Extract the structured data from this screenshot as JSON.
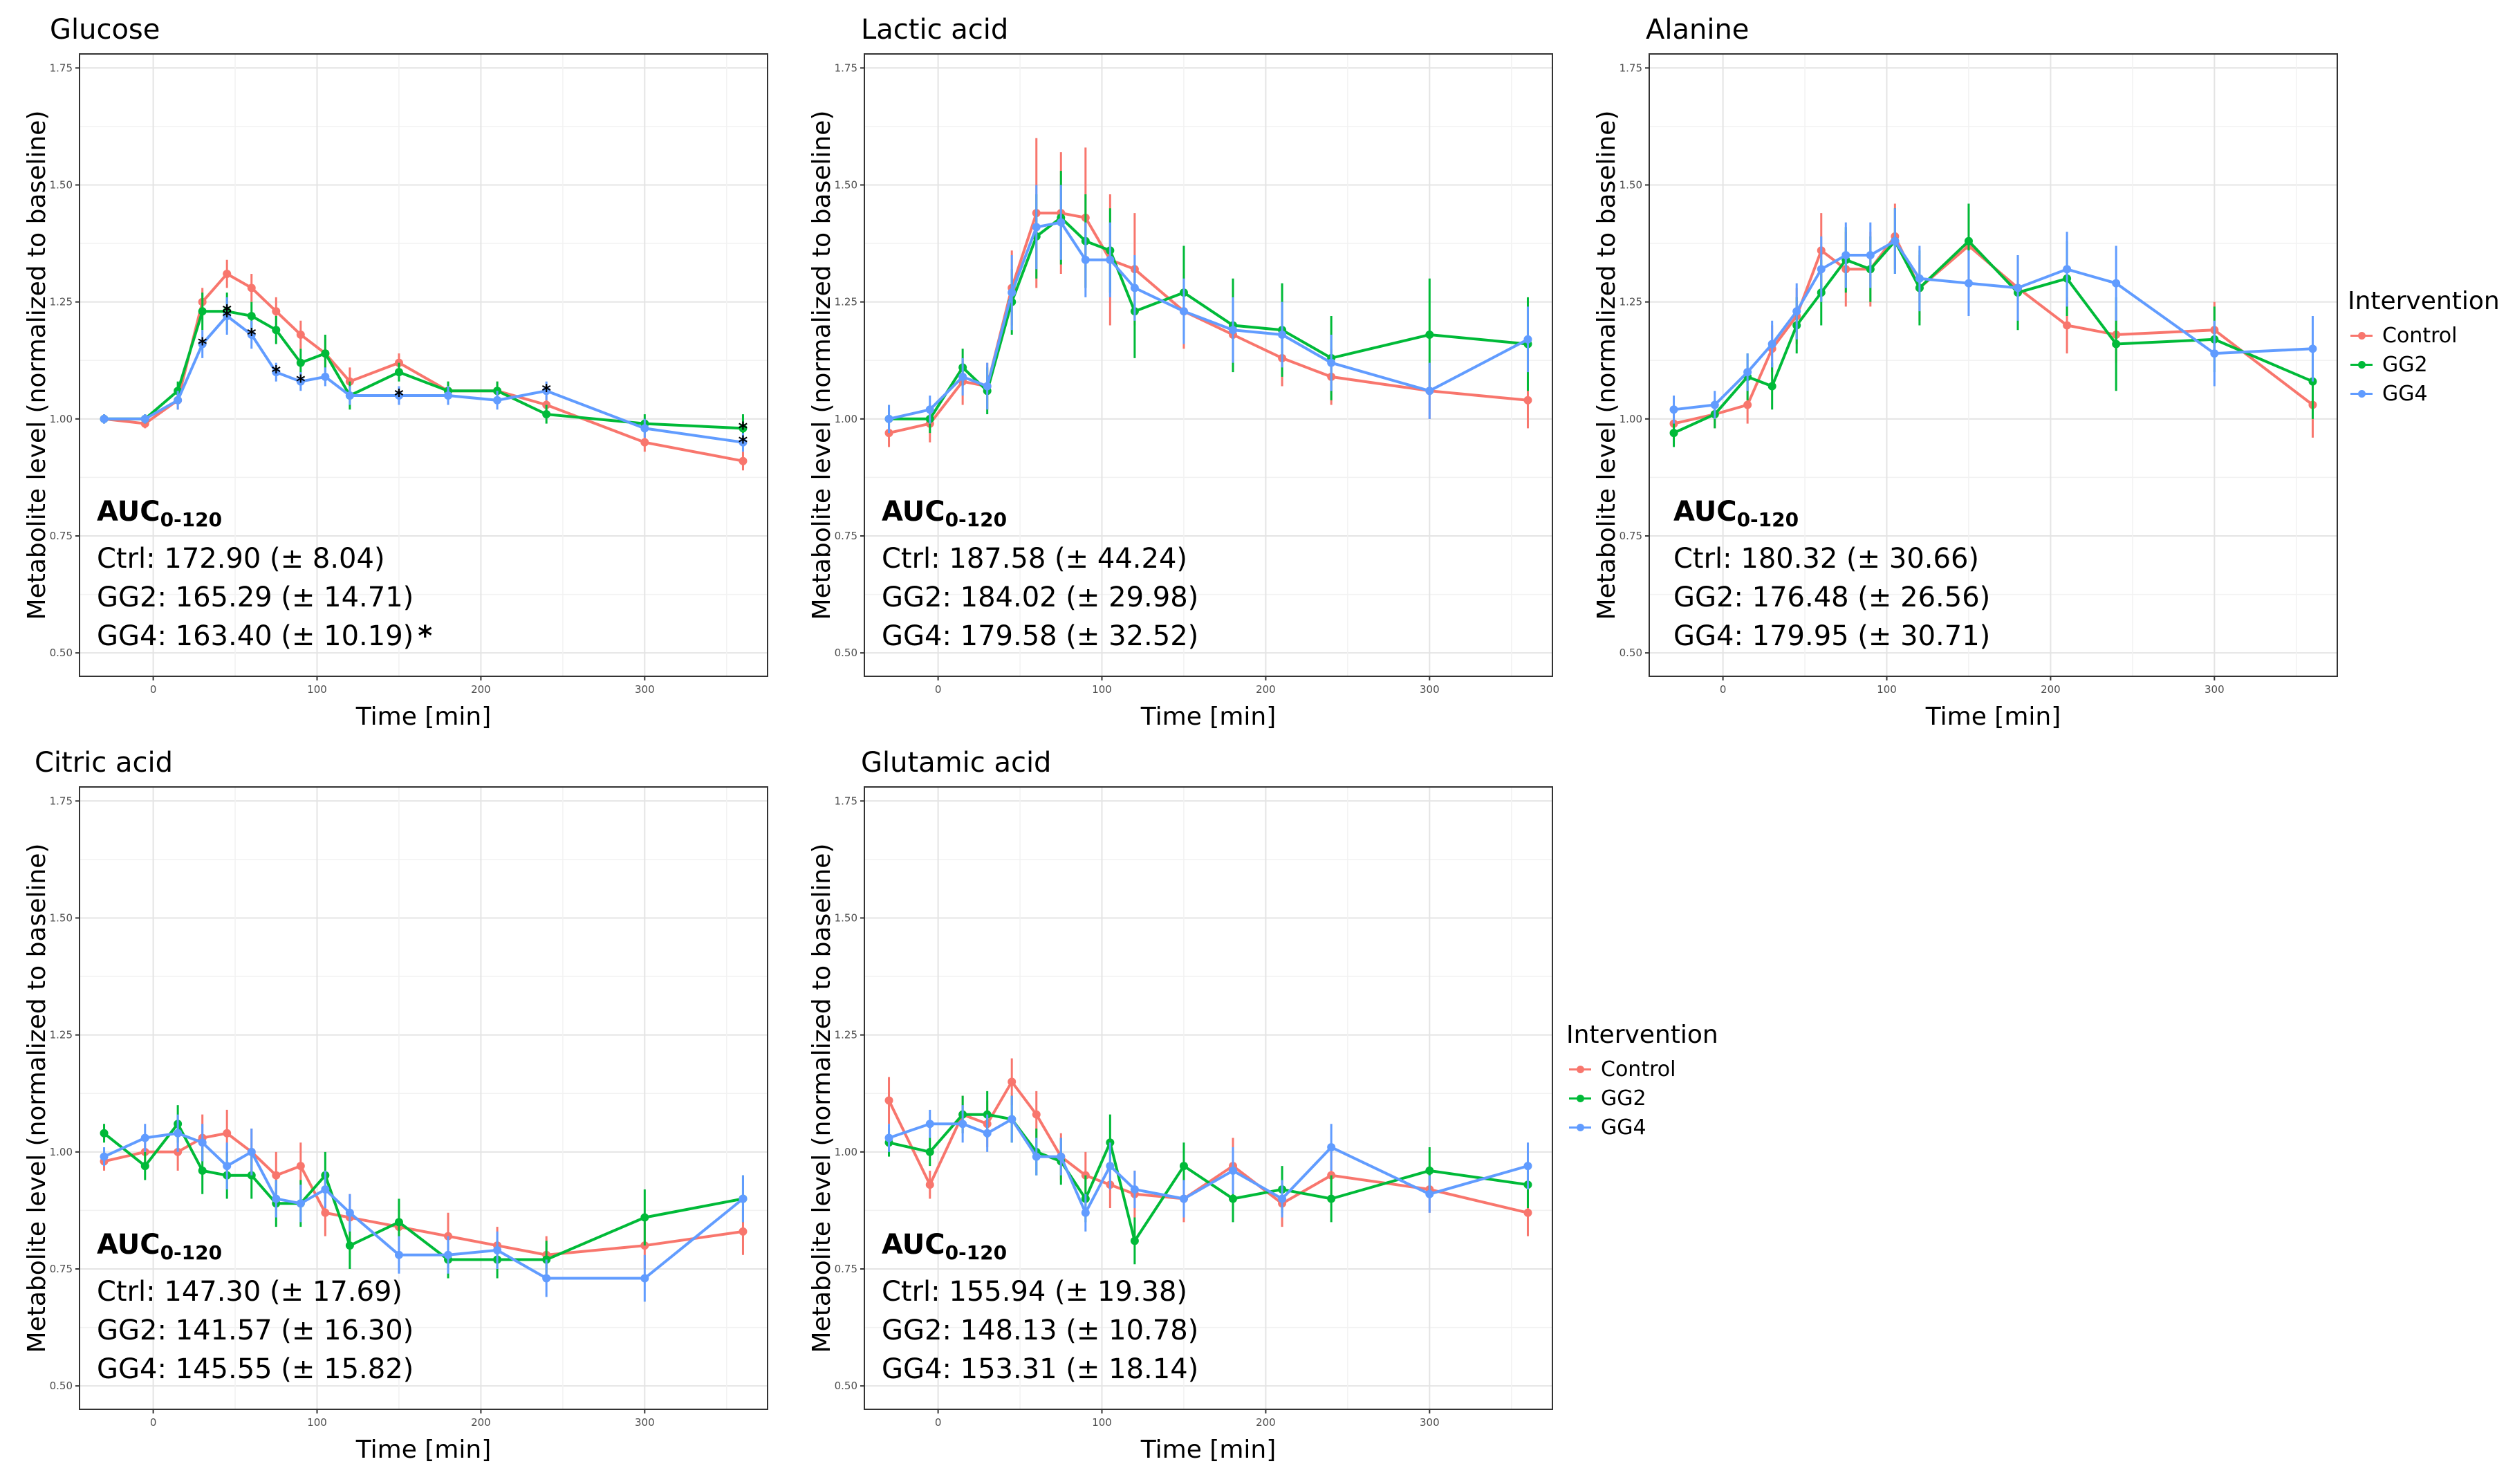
{
  "common": {
    "xlabel": "Time [min]",
    "ylabel": "Metabolite level (normalized to baseline)",
    "auc_header_base": "AUC",
    "auc_header_sub": "0-120",
    "x_ticks": [
      "0",
      "100",
      "200",
      "300"
    ],
    "y_ticks": [
      "0.50",
      "0.75",
      "1.00",
      "1.25",
      "1.50",
      "1.75"
    ],
    "xlim": [
      -45,
      375
    ],
    "ylim": [
      0.45,
      1.78
    ]
  },
  "legend": {
    "title": "Intervention",
    "items": [
      {
        "label": "Control",
        "color": "#F8766D"
      },
      {
        "label": "GG2",
        "color": "#00BA38"
      },
      {
        "label": "GG4",
        "color": "#619CFF"
      }
    ]
  },
  "panels": [
    {
      "title": "Glucose",
      "auc_lines": [
        "Ctrl: 172.90 (± 8.04)",
        "GG2: 165.29 (± 14.71)",
        "GG4: 163.40 (± 10.19)"
      ],
      "auc_star": "*"
    },
    {
      "title": "Lactic acid",
      "auc_lines": [
        "Ctrl: 187.58 (± 44.24)",
        "GG2: 184.02 (± 29.98)",
        "GG4: 179.58 (± 32.52)"
      ]
    },
    {
      "title": "Alanine",
      "auc_lines": [
        "Ctrl: 180.32 (± 30.66)",
        "GG2: 176.48 (± 26.56)",
        "GG4: 179.95 (± 30.71)"
      ]
    },
    {
      "title": "Citric acid",
      "auc_lines": [
        "Ctrl: 147.30 (± 17.69)",
        "GG2: 141.57 (± 16.30)",
        "GG4: 145.55 (± 15.82)"
      ]
    },
    {
      "title": "Glutamic acid",
      "auc_lines": [
        "Ctrl: 155.94 (± 19.38)",
        "GG2: 148.13 (± 10.78)",
        "GG4: 153.31 (± 18.14)"
      ]
    }
  ],
  "chart_data": [
    {
      "type": "line",
      "title": "Glucose",
      "xlabel": "Time [min]",
      "ylabel": "Metabolite level (normalized to baseline)",
      "xlim": [
        -45,
        375
      ],
      "ylim": [
        0.45,
        1.78
      ],
      "x": [
        -30,
        -5,
        15,
        30,
        45,
        60,
        75,
        90,
        105,
        120,
        150,
        180,
        210,
        240,
        300,
        360
      ],
      "series": [
        {
          "name": "Control",
          "color": "#F8766D",
          "values": [
            1.0,
            0.99,
            1.04,
            1.25,
            1.31,
            1.28,
            1.23,
            1.18,
            1.14,
            1.08,
            1.12,
            1.06,
            1.06,
            1.03,
            0.95,
            0.91
          ],
          "errors": [
            0.01,
            0.01,
            0.02,
            0.03,
            0.03,
            0.03,
            0.03,
            0.03,
            0.03,
            0.03,
            0.02,
            0.02,
            0.02,
            0.02,
            0.02,
            0.02
          ]
        },
        {
          "name": "GG2",
          "color": "#00BA38",
          "values": [
            1.0,
            1.0,
            1.06,
            1.23,
            1.23,
            1.22,
            1.19,
            1.12,
            1.14,
            1.05,
            1.1,
            1.06,
            1.06,
            1.01,
            0.99,
            0.98
          ],
          "errors": [
            0.01,
            0.01,
            0.02,
            0.04,
            0.04,
            0.03,
            0.03,
            0.03,
            0.04,
            0.03,
            0.02,
            0.02,
            0.02,
            0.02,
            0.02,
            0.03
          ]
        },
        {
          "name": "GG4",
          "color": "#619CFF",
          "values": [
            1.0,
            1.0,
            1.04,
            1.16,
            1.22,
            1.18,
            1.1,
            1.08,
            1.09,
            1.05,
            1.05,
            1.05,
            1.04,
            1.06,
            0.98,
            0.95
          ],
          "errors": [
            0.01,
            0.01,
            0.02,
            0.03,
            0.04,
            0.03,
            0.02,
            0.02,
            0.02,
            0.02,
            0.02,
            0.02,
            0.02,
            0.02,
            0.02,
            0.02
          ]
        }
      ],
      "significance_markers": [
        {
          "series": "GG4",
          "x": [
            30,
            45,
            60,
            75,
            90,
            150,
            240,
            360
          ],
          "symbol": "*"
        },
        {
          "series": "GG2",
          "x": [
            45,
            360
          ],
          "symbol": "*"
        }
      ]
    },
    {
      "type": "line",
      "title": "Lactic acid",
      "xlabel": "Time [min]",
      "ylabel": "Metabolite level (normalized to baseline)",
      "xlim": [
        -45,
        375
      ],
      "ylim": [
        0.45,
        1.78
      ],
      "x": [
        -30,
        -5,
        15,
        30,
        45,
        60,
        75,
        90,
        105,
        120,
        150,
        180,
        210,
        240,
        300,
        360
      ],
      "series": [
        {
          "name": "Control",
          "color": "#F8766D",
          "values": [
            0.97,
            0.99,
            1.08,
            1.07,
            1.28,
            1.44,
            1.44,
            1.43,
            1.34,
            1.32,
            1.23,
            1.18,
            1.13,
            1.09,
            1.06,
            1.04
          ],
          "errors": [
            0.03,
            0.04,
            0.05,
            0.05,
            0.08,
            0.16,
            0.13,
            0.15,
            0.14,
            0.12,
            0.08,
            0.07,
            0.06,
            0.06,
            0.06,
            0.06
          ]
        },
        {
          "name": "GG2",
          "color": "#00BA38",
          "values": [
            1.0,
            1.0,
            1.11,
            1.06,
            1.25,
            1.39,
            1.43,
            1.38,
            1.36,
            1.23,
            1.27,
            1.2,
            1.19,
            1.13,
            1.18,
            1.16
          ],
          "errors": [
            0.03,
            0.03,
            0.04,
            0.05,
            0.07,
            0.09,
            0.1,
            0.1,
            0.09,
            0.1,
            0.1,
            0.1,
            0.1,
            0.09,
            0.12,
            0.1
          ]
        },
        {
          "name": "GG4",
          "color": "#619CFF",
          "values": [
            1.0,
            1.02,
            1.09,
            1.07,
            1.27,
            1.41,
            1.42,
            1.34,
            1.34,
            1.28,
            1.23,
            1.19,
            1.18,
            1.12,
            1.06,
            1.17
          ],
          "errors": [
            0.03,
            0.03,
            0.04,
            0.05,
            0.08,
            0.09,
            0.08,
            0.08,
            0.08,
            0.07,
            0.07,
            0.07,
            0.07,
            0.06,
            0.06,
            0.07
          ]
        }
      ]
    },
    {
      "type": "line",
      "title": "Alanine",
      "xlabel": "Time [min]",
      "ylabel": "Metabolite level (normalized to baseline)",
      "xlim": [
        -45,
        375
      ],
      "ylim": [
        0.45,
        1.78
      ],
      "x": [
        -30,
        -5,
        15,
        30,
        45,
        60,
        75,
        90,
        105,
        120,
        150,
        180,
        210,
        240,
        300,
        360
      ],
      "series": [
        {
          "name": "Control",
          "color": "#F8766D",
          "values": [
            0.99,
            1.01,
            1.03,
            1.15,
            1.22,
            1.36,
            1.32,
            1.32,
            1.39,
            1.28,
            1.37,
            1.28,
            1.2,
            1.18,
            1.19,
            1.03
          ],
          "errors": [
            0.03,
            0.03,
            0.04,
            0.05,
            0.06,
            0.08,
            0.08,
            0.08,
            0.07,
            0.07,
            0.08,
            0.07,
            0.06,
            0.06,
            0.06,
            0.07
          ]
        },
        {
          "name": "GG2",
          "color": "#00BA38",
          "values": [
            0.97,
            1.01,
            1.09,
            1.07,
            1.2,
            1.27,
            1.34,
            1.32,
            1.38,
            1.28,
            1.38,
            1.27,
            1.3,
            1.16,
            1.17,
            1.08
          ],
          "errors": [
            0.03,
            0.03,
            0.05,
            0.05,
            0.06,
            0.07,
            0.07,
            0.07,
            0.07,
            0.08,
            0.08,
            0.08,
            0.08,
            0.1,
            0.07,
            0.08
          ]
        },
        {
          "name": "GG4",
          "color": "#619CFF",
          "values": [
            1.02,
            1.03,
            1.1,
            1.16,
            1.23,
            1.32,
            1.35,
            1.35,
            1.38,
            1.3,
            1.29,
            1.28,
            1.32,
            1.29,
            1.14,
            1.15
          ],
          "errors": [
            0.03,
            0.03,
            0.04,
            0.05,
            0.06,
            0.07,
            0.07,
            0.07,
            0.07,
            0.07,
            0.07,
            0.07,
            0.08,
            0.08,
            0.07,
            0.07
          ]
        }
      ]
    },
    {
      "type": "line",
      "title": "Citric acid",
      "xlabel": "Time [min]",
      "ylabel": "Metabolite level (normalized to baseline)",
      "xlim": [
        -45,
        375
      ],
      "ylim": [
        0.45,
        1.78
      ],
      "x": [
        -30,
        -5,
        15,
        30,
        45,
        60,
        75,
        90,
        105,
        120,
        150,
        180,
        210,
        240,
        300,
        360
      ],
      "series": [
        {
          "name": "Control",
          "color": "#F8766D",
          "values": [
            0.98,
            1.0,
            1.0,
            1.03,
            1.04,
            1.0,
            0.95,
            0.97,
            0.87,
            0.86,
            0.84,
            0.82,
            0.8,
            0.78,
            0.8,
            0.83
          ],
          "errors": [
            0.02,
            0.03,
            0.04,
            0.05,
            0.05,
            0.05,
            0.05,
            0.05,
            0.05,
            0.05,
            0.05,
            0.05,
            0.04,
            0.04,
            0.05,
            0.05
          ]
        },
        {
          "name": "GG2",
          "color": "#00BA38",
          "values": [
            1.04,
            0.97,
            1.06,
            0.96,
            0.95,
            0.95,
            0.89,
            0.89,
            0.95,
            0.8,
            0.85,
            0.77,
            0.77,
            0.77,
            0.86,
            0.9
          ],
          "errors": [
            0.02,
            0.03,
            0.04,
            0.05,
            0.05,
            0.05,
            0.05,
            0.05,
            0.05,
            0.05,
            0.05,
            0.04,
            0.04,
            0.04,
            0.06,
            0.05
          ]
        },
        {
          "name": "GG4",
          "color": "#619CFF",
          "values": [
            0.99,
            1.03,
            1.04,
            1.02,
            0.97,
            1.0,
            0.9,
            0.89,
            0.92,
            0.87,
            0.78,
            0.78,
            0.79,
            0.73,
            0.73,
            0.9
          ],
          "errors": [
            0.02,
            0.03,
            0.04,
            0.04,
            0.05,
            0.05,
            0.04,
            0.04,
            0.04,
            0.04,
            0.04,
            0.04,
            0.04,
            0.04,
            0.05,
            0.05
          ]
        }
      ]
    },
    {
      "type": "line",
      "title": "Glutamic acid",
      "xlabel": "Time [min]",
      "ylabel": "Metabolite level (normalized to baseline)",
      "xlim": [
        -45,
        375
      ],
      "ylim": [
        0.45,
        1.78
      ],
      "x": [
        -30,
        -5,
        15,
        30,
        45,
        60,
        75,
        90,
        105,
        120,
        150,
        180,
        210,
        240,
        300,
        360
      ],
      "series": [
        {
          "name": "Control",
          "color": "#F8766D",
          "values": [
            1.11,
            0.93,
            1.08,
            1.06,
            1.15,
            1.08,
            0.99,
            0.95,
            0.93,
            0.91,
            0.9,
            0.97,
            0.89,
            0.95,
            0.92,
            0.87
          ],
          "errors": [
            0.05,
            0.03,
            0.04,
            0.05,
            0.05,
            0.05,
            0.05,
            0.05,
            0.05,
            0.05,
            0.05,
            0.06,
            0.05,
            0.05,
            0.05,
            0.05
          ]
        },
        {
          "name": "GG2",
          "color": "#00BA38",
          "values": [
            1.02,
            1.0,
            1.08,
            1.08,
            1.07,
            1.0,
            0.98,
            0.9,
            1.02,
            0.81,
            0.97,
            0.9,
            0.92,
            0.9,
            0.96,
            0.93
          ],
          "errors": [
            0.03,
            0.03,
            0.04,
            0.05,
            0.05,
            0.05,
            0.05,
            0.05,
            0.06,
            0.05,
            0.05,
            0.05,
            0.05,
            0.05,
            0.05,
            0.05
          ]
        },
        {
          "name": "GG4",
          "color": "#619CFF",
          "values": [
            1.03,
            1.06,
            1.06,
            1.04,
            1.07,
            0.99,
            0.99,
            0.87,
            0.97,
            0.92,
            0.9,
            0.96,
            0.9,
            1.01,
            0.91,
            0.97
          ],
          "errors": [
            0.03,
            0.03,
            0.04,
            0.04,
            0.05,
            0.04,
            0.04,
            0.04,
            0.05,
            0.04,
            0.04,
            0.05,
            0.04,
            0.05,
            0.04,
            0.05
          ]
        }
      ]
    }
  ]
}
